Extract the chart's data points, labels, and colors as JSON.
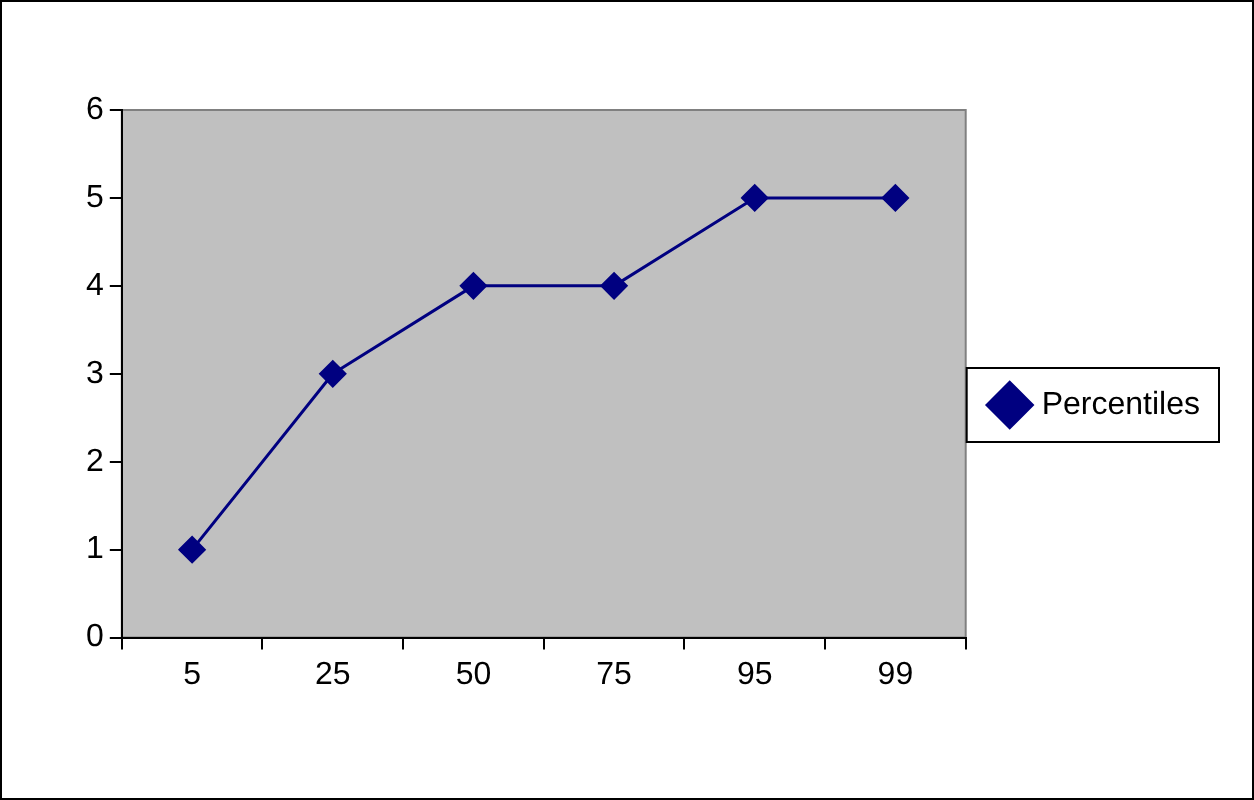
{
  "chart_data": {
    "type": "line",
    "categories": [
      "5",
      "25",
      "50",
      "75",
      "95",
      "99"
    ],
    "series": [
      {
        "name": "Percentiles",
        "color": "#000080",
        "values": [
          1,
          3,
          4,
          4,
          5,
          5
        ]
      }
    ],
    "ylim": [
      0,
      6
    ],
    "yticks": [
      0,
      1,
      2,
      3,
      4,
      5,
      6
    ],
    "grid": false,
    "legend": "right",
    "marker": "diamond",
    "line_style": "solid"
  }
}
